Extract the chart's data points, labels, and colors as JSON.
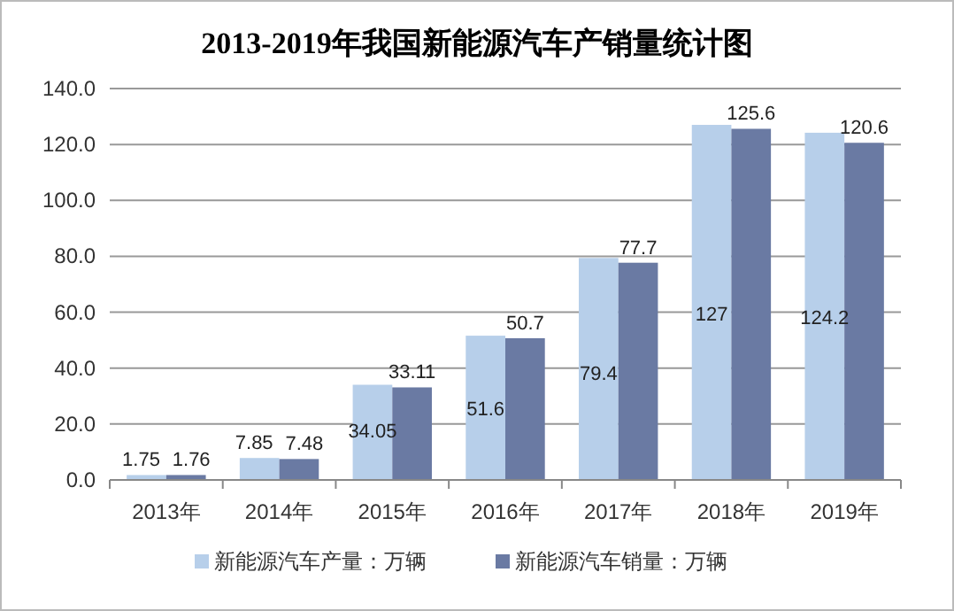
{
  "chart_data": {
    "type": "bar",
    "title": "2013-2019年我国新能源汽车产销量统计图",
    "categories": [
      "2013年",
      "2014年",
      "2015年",
      "2016年",
      "2017年",
      "2018年",
      "2019年"
    ],
    "series": [
      {
        "name": "新能源汽车产量：万辆",
        "color": "#b7cfea",
        "values": [
          1.75,
          7.85,
          34.05,
          51.6,
          79.4,
          127,
          124.2
        ]
      },
      {
        "name": "新能源汽车销量：万辆",
        "color": "#6a7aa3",
        "values": [
          1.76,
          7.48,
          33.11,
          50.7,
          77.7,
          125.6,
          120.6
        ]
      }
    ],
    "ylim": [
      0,
      140
    ],
    "yticks": [
      {
        "value": 0,
        "label": "0.0"
      },
      {
        "value": 20,
        "label": "20.0"
      },
      {
        "value": 40,
        "label": "40.0"
      },
      {
        "value": 60,
        "label": "60.0"
      },
      {
        "value": 80,
        "label": "80.0"
      },
      {
        "value": 100,
        "label": "100.0"
      },
      {
        "value": 120,
        "label": "120.0"
      },
      {
        "value": 140,
        "label": "140.0"
      }
    ],
    "grid": "y",
    "legend": "bottom",
    "data_labels": true
  }
}
